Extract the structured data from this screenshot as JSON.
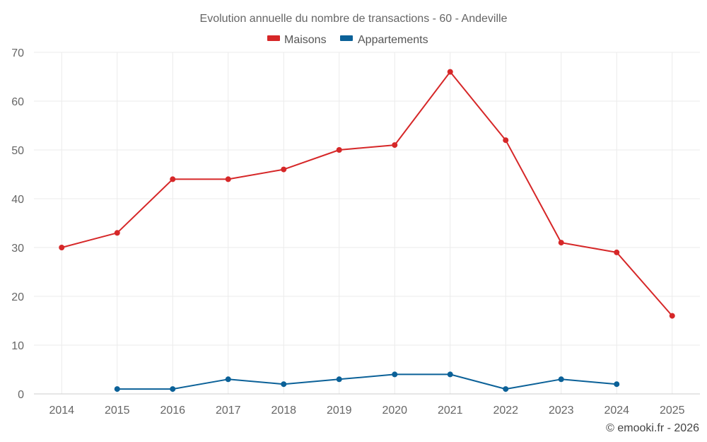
{
  "chart_data": {
    "type": "line",
    "title": "Evolution annuelle du nombre de transactions - 60 - Andeville",
    "categories": [
      "2014",
      "2015",
      "2016",
      "2017",
      "2018",
      "2019",
      "2020",
      "2021",
      "2022",
      "2023",
      "2024",
      "2025"
    ],
    "series": [
      {
        "name": "Maisons",
        "color": "#d62728",
        "values": [
          30,
          33,
          44,
          44,
          46,
          50,
          51,
          66,
          52,
          31,
          29,
          16
        ]
      },
      {
        "name": "Appartements",
        "color": "#0b6198",
        "values": [
          null,
          1,
          1,
          3,
          2,
          3,
          4,
          4,
          1,
          3,
          2,
          null
        ]
      }
    ],
    "yticks": [
      0,
      10,
      20,
      30,
      40,
      50,
      60,
      70
    ],
    "ylim": [
      0,
      70
    ],
    "xlabel": "",
    "ylabel": "",
    "legend": "top-center",
    "grid": true
  },
  "credit": "© emooki.fr - 2026"
}
